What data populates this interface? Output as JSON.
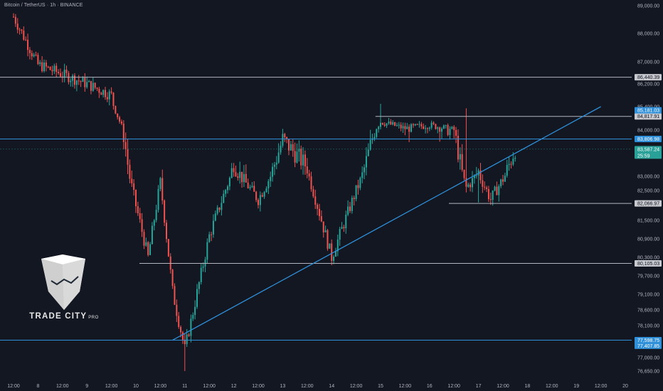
{
  "header": {
    "symbol_title": "Bitcoin / TetherUS · 1h · BINANCE"
  },
  "logo": {
    "brand": "TRADE CITY",
    "suffix": "PRO"
  },
  "colors": {
    "background": "#131722",
    "up_candle": "#26a69a",
    "down_candle": "#ef5350",
    "trendline": "#2f8fd8",
    "level_line": "#b2b5be",
    "axis_text": "#b2b5be",
    "current_price_tag": "#2aa198"
  },
  "chart_data": {
    "type": "candlestick",
    "ylim": [
      76500,
      89000
    ],
    "y_ticks": [
      {
        "value": 89000,
        "label": "89,000.00"
      },
      {
        "value": 88000,
        "label": "88,000.00"
      },
      {
        "value": 87000,
        "label": "87,000.00"
      },
      {
        "value": 86200,
        "label": "86,200.00"
      },
      {
        "value": 85400,
        "label": "85,400.00"
      },
      {
        "value": 84000,
        "label": "84,000.00"
      },
      {
        "value": 83000,
        "label": "83,000.00"
      },
      {
        "value": 82500,
        "label": "82,500.00"
      },
      {
        "value": 81500,
        "label": "81,500.00"
      },
      {
        "value": 80900,
        "label": "80,900.00"
      },
      {
        "value": 80300,
        "label": "80,300.00"
      },
      {
        "value": 79700,
        "label": "79,700.00"
      },
      {
        "value": 79100,
        "label": "79,100.00"
      },
      {
        "value": 78600,
        "label": "78,600.00"
      },
      {
        "value": 78100,
        "label": "78,100.00"
      },
      {
        "value": 77000,
        "label": "77,000.00"
      },
      {
        "value": 76650,
        "label": "76,650.00"
      }
    ],
    "x_ticks": [
      "12:00",
      "8",
      "12:00",
      "9",
      "12:00",
      "10",
      "12:00",
      "11",
      "12:00",
      "12",
      "12:00",
      "13",
      "12:00",
      "14",
      "12:00",
      "15",
      "12:00",
      "16",
      "12:00",
      "17",
      "12:00",
      "18",
      "12:00",
      "19",
      "12:00",
      "20"
    ],
    "horizontal_levels": [
      {
        "name": "resistance-86440",
        "value": 86440.39,
        "label": "86,440.39",
        "color": "#b2b5be",
        "span": "full"
      },
      {
        "name": "resistance-84817",
        "value": 84817.91,
        "label": "84,817.91",
        "color": "#b2b5be",
        "span": "right"
      },
      {
        "name": "resistance-83806",
        "value": 83806.98,
        "label": "83,806.98",
        "color": "#2f8fd8",
        "span": "full"
      },
      {
        "name": "support-82066",
        "value": 82066.97,
        "label": "82,066.97",
        "color": "#b2b5be",
        "span": "right"
      },
      {
        "name": "support-80105",
        "value": 80105.03,
        "label": "80,105.03",
        "color": "#b2b5be",
        "span": "right"
      },
      {
        "name": "support-77598",
        "value": 77598.75,
        "label": "77,598.75",
        "color": "#2f8fd8",
        "span": "full"
      }
    ],
    "tags": [
      {
        "value": 85181.03,
        "label": "85,181.03",
        "bg": "#2f8fd8",
        "fg": "#ffffff"
      },
      {
        "value": 83587.24,
        "label": "83,587.24",
        "sub": "25:59",
        "bg": "#2aa198",
        "fg": "#ffffff"
      },
      {
        "value": 77407.85,
        "label": "77,407.85",
        "bg": "#2f8fd8",
        "fg": "#ffffff"
      }
    ],
    "trendline": {
      "from": {
        "date": "Mar 10 18:00",
        "price": 77600
      },
      "to": {
        "date": "Mar 19 12:00",
        "price": 85400
      }
    },
    "key_points": [
      {
        "label": "Mar 7 12:00",
        "price": 88600
      },
      {
        "label": "Mar 8 00:00",
        "price": 86900
      },
      {
        "label": "Mar 9 00:00",
        "price": 86200
      },
      {
        "label": "Mar 9 12:00",
        "price": 85800
      },
      {
        "label": "Mar 10 00:00",
        "price": 82000
      },
      {
        "label": "Mar 10 06:00",
        "price": 80300
      },
      {
        "label": "Mar 10 12:00",
        "price": 82800
      },
      {
        "label": "Mar 10 18:00",
        "price": 79200
      },
      {
        "label": "Mar 11 00:00",
        "price": 77300
      },
      {
        "label": "Mar 11 12:00",
        "price": 81000
      },
      {
        "label": "Mar 12 00:00",
        "price": 83300
      },
      {
        "label": "Mar 12 12:00",
        "price": 82200
      },
      {
        "label": "Mar 13 00:00",
        "price": 83800
      },
      {
        "label": "Mar 13 12:00",
        "price": 83200
      },
      {
        "label": "Mar 14 00:00",
        "price": 80300
      },
      {
        "label": "Mar 14 12:00",
        "price": 82500
      },
      {
        "label": "Mar 15 00:00",
        "price": 84500
      },
      {
        "label": "Mar 15 12:00",
        "price": 84100
      },
      {
        "label": "Mar 16 00:00",
        "price": 84300
      },
      {
        "label": "Mar 16 12:00",
        "price": 84000
      },
      {
        "label": "Mar 16 18:00",
        "price": 82600
      },
      {
        "label": "Mar 17 00:00",
        "price": 83100
      },
      {
        "label": "Mar 17 06:00",
        "price": 82200
      },
      {
        "label": "Mar 17 18:00",
        "price": 83600
      }
    ]
  }
}
